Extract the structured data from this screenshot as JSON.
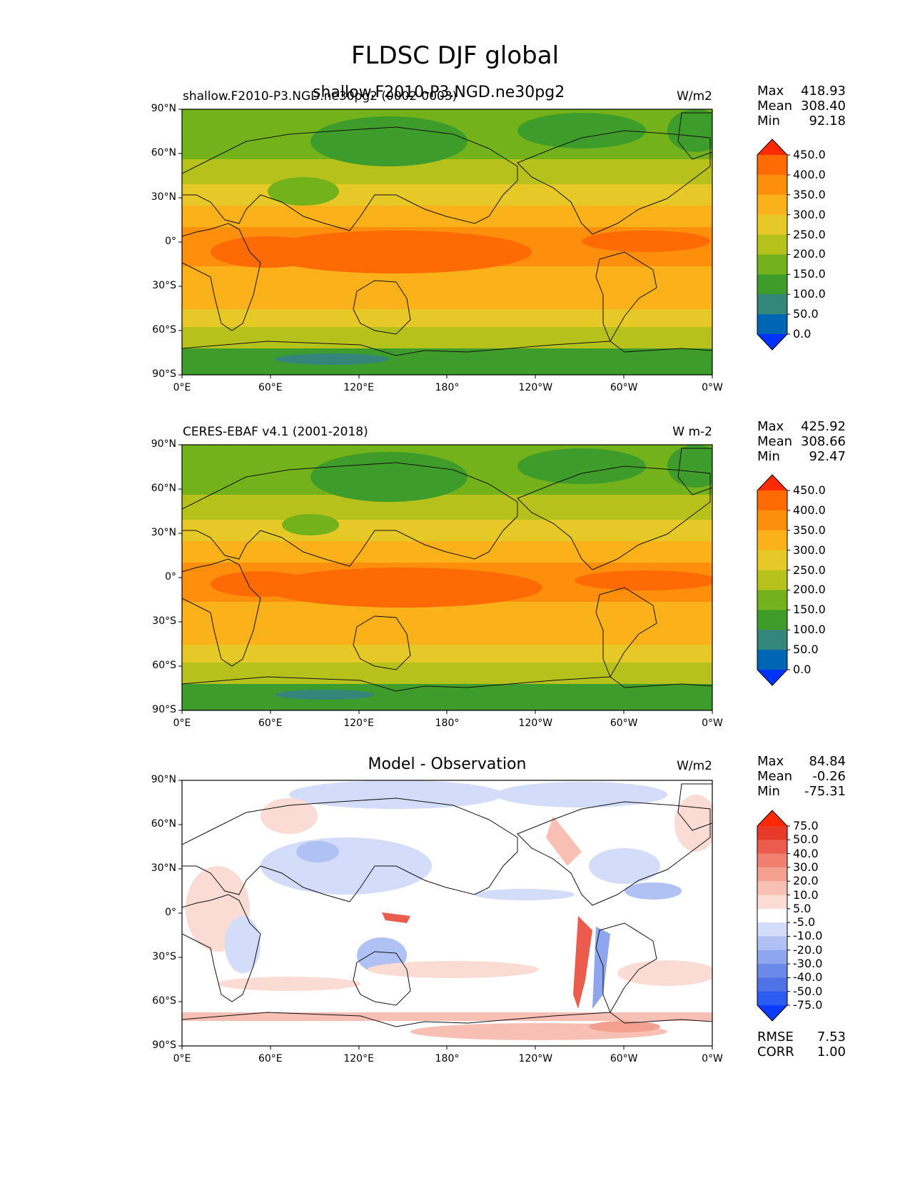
{
  "title": "FLDSC DJF global",
  "panels": [
    {
      "id": "model",
      "left_title": "shallow.F2010-P3.NGD.ne30pg2 (0002-0003)",
      "center_title": "shallow.F2010-P3.NGD.ne30pg2",
      "units": "W/m2",
      "stats": [
        {
          "label": "Max",
          "value": "418.93"
        },
        {
          "label": "Mean",
          "value": "308.40"
        },
        {
          "label": "Min",
          "value": "92.18"
        }
      ],
      "colorbar_levels": [
        "450.0",
        "400.0",
        "350.0",
        "300.0",
        "250.0",
        "200.0",
        "150.0",
        "100.0",
        "50.0",
        "0.0"
      ]
    },
    {
      "id": "obs",
      "left_title": "CERES-EBAF v4.1 (2001-2018)",
      "center_title": "",
      "units": "W m-2",
      "stats": [
        {
          "label": "Max",
          "value": "425.92"
        },
        {
          "label": "Mean",
          "value": "308.66"
        },
        {
          "label": "Min",
          "value": "92.47"
        }
      ],
      "colorbar_levels": [
        "450.0",
        "400.0",
        "350.0",
        "300.0",
        "250.0",
        "200.0",
        "150.0",
        "100.0",
        "50.0",
        "0.0"
      ]
    },
    {
      "id": "diff",
      "left_title": "",
      "center_title": "Model - Observation",
      "units": "W/m2",
      "stats": [
        {
          "label": "Max",
          "value": "84.84"
        },
        {
          "label": "Mean",
          "value": "-0.26"
        },
        {
          "label": "Min",
          "value": "-75.31"
        }
      ],
      "colorbar_levels": [
        "75.0",
        "50.0",
        "40.0",
        "30.0",
        "20.0",
        "10.0",
        "5.0",
        "-5.0",
        "-10.0",
        "-20.0",
        "-30.0",
        "-40.0",
        "-50.0",
        "-75.0"
      ],
      "extra_stats": [
        {
          "label": "RMSE",
          "value": "7.53"
        },
        {
          "label": "CORR",
          "value": "1.00"
        }
      ]
    }
  ],
  "lat_ticks": [
    "90°N",
    "60°N",
    "30°N",
    "0°",
    "30°S",
    "60°S",
    "90°S"
  ],
  "lon_ticks": [
    "0°E",
    "60°E",
    "120°E",
    "180°",
    "120°W",
    "60°W",
    "0°W"
  ],
  "colors": {
    "abs_scale": [
      "#0033ff",
      "#0066b3",
      "#35867a",
      "#3e9d2a",
      "#74b21c",
      "#b6c21b",
      "#e6c926",
      "#fbb119",
      "#fd8f0d",
      "#fe6a04",
      "#ff2a00"
    ],
    "diff_scale": [
      "#0a3bff",
      "#2e5cf3",
      "#4f73e6",
      "#6b8ae8",
      "#8ea6ee",
      "#b0c1f3",
      "#d3dcf8",
      "#ffffff",
      "#fbdcd4",
      "#f8c0b4",
      "#f4a090",
      "#f08070",
      "#ec5c4c",
      "#e83a2a",
      "#ff2a00"
    ]
  }
}
